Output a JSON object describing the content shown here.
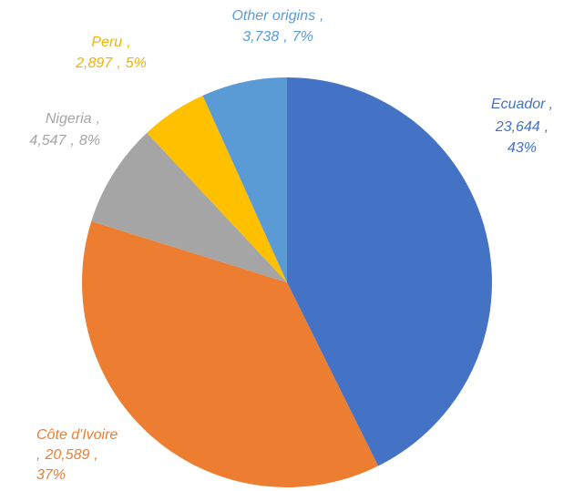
{
  "chart_data": {
    "type": "pie",
    "categories": [
      "Ecuador",
      "Côte d'Ivoire",
      "Nigeria",
      "Peru",
      "Other origins"
    ],
    "values": [
      23644,
      20589,
      4547,
      2897,
      3738
    ],
    "value_labels": [
      "23,644",
      "20,589",
      "4,547",
      "2,897",
      "3,738"
    ],
    "percent_labels": [
      "43%",
      "37%",
      "8%",
      "5%",
      "7%"
    ],
    "label_separator": ",",
    "colors": [
      "#4472c4",
      "#ed7d31",
      "#a5a5a5",
      "#ffc000",
      "#5b9bd5"
    ]
  }
}
